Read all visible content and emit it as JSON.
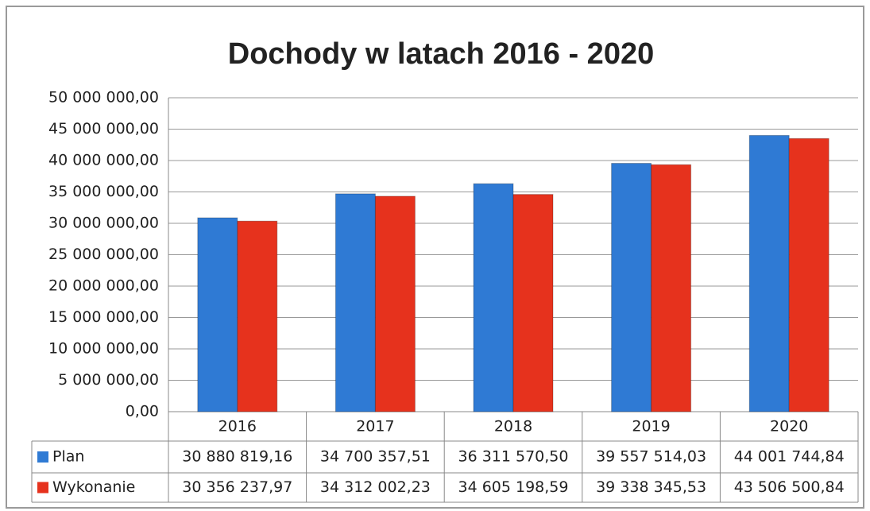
{
  "chart_data": {
    "type": "bar",
    "title": "Dochody w latach 2016 - 2020",
    "categories": [
      "2016",
      "2017",
      "2018",
      "2019",
      "2020"
    ],
    "series": [
      {
        "name": "Plan",
        "color": "#2f7ad4",
        "values": [
          30880819.16,
          34700357.51,
          36311570.5,
          39557514.03,
          44001744.84
        ],
        "value_labels": [
          "30 880 819,16",
          "34 700 357,51",
          "36 311 570,50",
          "39 557 514,03",
          "44 001 744,84"
        ]
      },
      {
        "name": "Wykonanie",
        "color": "#e6321d",
        "values": [
          30356237.97,
          34312002.23,
          34605198.59,
          39338345.53,
          43506500.84
        ],
        "value_labels": [
          "30 356 237,97",
          "34 312 002,23",
          "34 605 198,59",
          "39 338 345,53",
          "43 506 500,84"
        ]
      }
    ],
    "ylim": [
      0,
      50000000
    ],
    "yticks": [
      {
        "value": 0,
        "label": "0,00"
      },
      {
        "value": 5000000,
        "label": "5 000 000,00"
      },
      {
        "value": 10000000,
        "label": "10 000 000,00"
      },
      {
        "value": 15000000,
        "label": "15 000 000,00"
      },
      {
        "value": 20000000,
        "label": "20 000 000,00"
      },
      {
        "value": 25000000,
        "label": "25 000 000,00"
      },
      {
        "value": 30000000,
        "label": "30 000 000,00"
      },
      {
        "value": 35000000,
        "label": "35 000 000,00"
      },
      {
        "value": 40000000,
        "label": "40 000 000,00"
      },
      {
        "value": 45000000,
        "label": "45 000 000,00"
      },
      {
        "value": 50000000,
        "label": "50 000 000,00"
      }
    ],
    "grid": true
  }
}
